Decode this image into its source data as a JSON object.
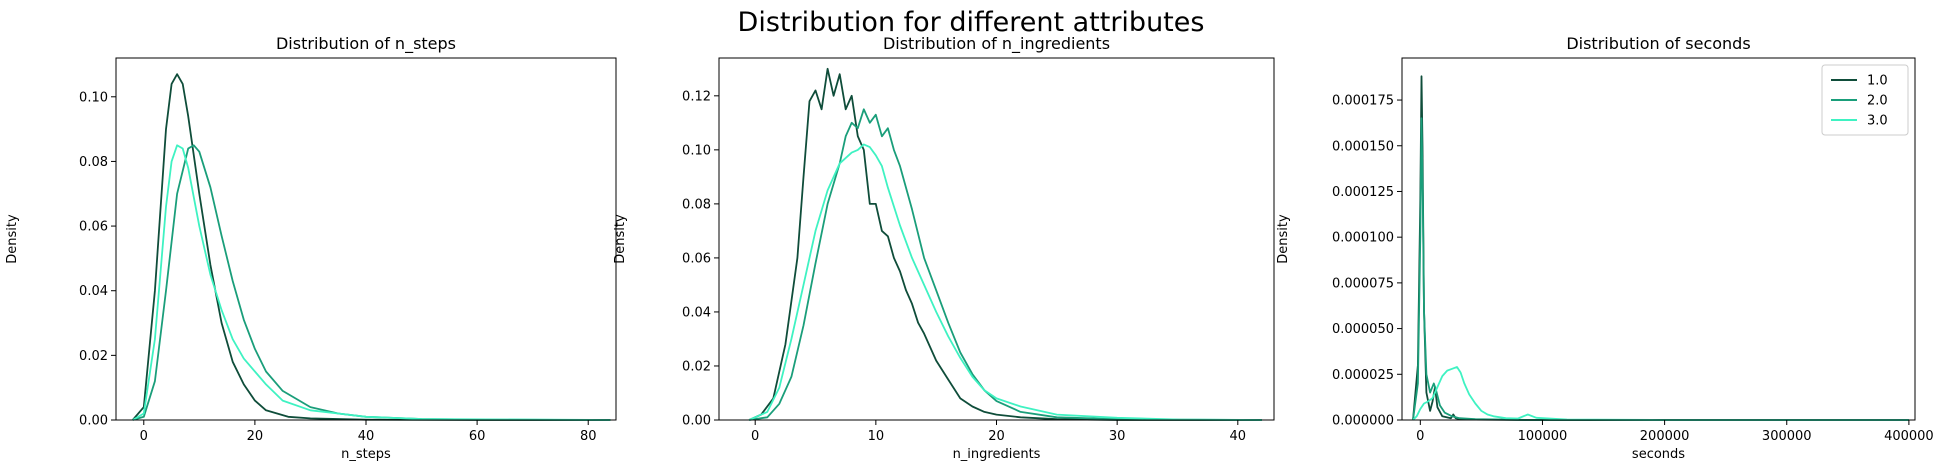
{
  "suptitle": "Distribution for different attributes",
  "colors": {
    "1.0": "#0f4d3a",
    "2.0": "#1a9e7a",
    "3.0": "#3ff2c2"
  },
  "chart_data": [
    {
      "type": "line",
      "title": "Distribution of n_steps",
      "xlabel": "n_steps",
      "ylabel": "Density",
      "xlim": [
        -5,
        85
      ],
      "ylim": [
        0,
        0.112
      ],
      "xticks": [
        0,
        20,
        40,
        60,
        80
      ],
      "xtick_labels": [
        "0",
        "20",
        "40",
        "60",
        "80"
      ],
      "yticks": [
        0,
        0.02,
        0.04,
        0.06,
        0.08,
        0.1
      ],
      "ytick_labels": [
        "0.00",
        "0.02",
        "0.04",
        "0.06",
        "0.08",
        "0.10"
      ],
      "series": [
        {
          "name": "1.0",
          "x": [
            -2,
            0,
            2,
            4,
            5,
            6,
            7,
            8,
            10,
            12,
            14,
            16,
            18,
            20,
            22,
            24,
            26,
            30,
            40,
            60,
            84
          ],
          "y": [
            0,
            0.004,
            0.04,
            0.09,
            0.104,
            0.107,
            0.104,
            0.094,
            0.07,
            0.048,
            0.03,
            0.018,
            0.011,
            0.006,
            0.003,
            0.002,
            0.001,
            0.0005,
            0.0001,
            0,
            0
          ]
        },
        {
          "name": "2.0",
          "x": [
            -2,
            0,
            2,
            4,
            6,
            8,
            9,
            10,
            12,
            14,
            16,
            18,
            20,
            22,
            25,
            30,
            35,
            40,
            50,
            60,
            84
          ],
          "y": [
            0,
            0.001,
            0.012,
            0.04,
            0.07,
            0.084,
            0.085,
            0.083,
            0.072,
            0.057,
            0.043,
            0.031,
            0.022,
            0.015,
            0.009,
            0.004,
            0.002,
            0.001,
            0.0003,
            0.0001,
            0
          ]
        },
        {
          "name": "3.0",
          "x": [
            -2,
            0,
            2,
            4,
            5,
            6,
            7,
            8,
            10,
            12,
            14,
            16,
            18,
            20,
            22,
            25,
            30,
            35,
            40,
            50,
            84
          ],
          "y": [
            0,
            0.002,
            0.025,
            0.066,
            0.08,
            0.085,
            0.084,
            0.078,
            0.06,
            0.045,
            0.034,
            0.025,
            0.019,
            0.015,
            0.011,
            0.006,
            0.003,
            0.002,
            0.001,
            0.0003,
            0
          ]
        }
      ]
    },
    {
      "type": "line",
      "title": "Distribution of n_ingredients",
      "xlabel": "n_ingredients",
      "ylabel": "Density",
      "xlim": [
        -3,
        43
      ],
      "ylim": [
        0,
        0.134
      ],
      "xticks": [
        0,
        10,
        20,
        30,
        40
      ],
      "xtick_labels": [
        "0",
        "10",
        "20",
        "30",
        "40"
      ],
      "yticks": [
        0,
        0.02,
        0.04,
        0.06,
        0.08,
        0.1,
        0.12
      ],
      "ytick_labels": [
        "0.00",
        "0.02",
        "0.04",
        "0.06",
        "0.08",
        "0.10",
        "0.12"
      ],
      "series": [
        {
          "name": "1.0",
          "x": [
            -0.5,
            0.5,
            1.5,
            2.5,
            3.5,
            4,
            4.5,
            5,
            5.5,
            6,
            6.5,
            7,
            7.5,
            8,
            8.5,
            9,
            9.5,
            10,
            10.5,
            11,
            11.5,
            12,
            12.5,
            13,
            13.5,
            14,
            15,
            16,
            17,
            18,
            19,
            20,
            22,
            25,
            30,
            42
          ],
          "y": [
            0,
            0.002,
            0.008,
            0.028,
            0.06,
            0.09,
            0.118,
            0.122,
            0.115,
            0.13,
            0.12,
            0.128,
            0.115,
            0.12,
            0.105,
            0.1,
            0.08,
            0.08,
            0.07,
            0.068,
            0.06,
            0.055,
            0.048,
            0.043,
            0.036,
            0.032,
            0.022,
            0.015,
            0.008,
            0.005,
            0.003,
            0.002,
            0.001,
            0.0003,
            0,
            0
          ]
        },
        {
          "name": "2.0",
          "x": [
            -0.5,
            1,
            2,
            3,
            4,
            5,
            6,
            7,
            7.5,
            8,
            8.5,
            9,
            9.5,
            10,
            10.5,
            11,
            11.5,
            12,
            13,
            14,
            15,
            16,
            17,
            18,
            19,
            20,
            22,
            25,
            30,
            35,
            42
          ],
          "y": [
            0,
            0.001,
            0.006,
            0.016,
            0.035,
            0.058,
            0.08,
            0.095,
            0.105,
            0.11,
            0.108,
            0.115,
            0.11,
            0.113,
            0.105,
            0.108,
            0.1,
            0.094,
            0.078,
            0.06,
            0.048,
            0.036,
            0.025,
            0.017,
            0.011,
            0.007,
            0.003,
            0.001,
            0.0003,
            0.0001,
            0
          ]
        },
        {
          "name": "3.0",
          "x": [
            -0.5,
            1,
            2,
            3,
            4,
            5,
            6,
            7,
            8,
            8.5,
            9,
            9.5,
            10,
            10.5,
            11,
            12,
            13,
            14,
            15,
            16,
            17,
            18,
            19,
            20,
            22,
            25,
            30,
            35,
            42
          ],
          "y": [
            0,
            0.003,
            0.012,
            0.03,
            0.05,
            0.07,
            0.085,
            0.095,
            0.099,
            0.1,
            0.102,
            0.101,
            0.098,
            0.094,
            0.086,
            0.072,
            0.06,
            0.05,
            0.04,
            0.031,
            0.023,
            0.016,
            0.011,
            0.008,
            0.005,
            0.002,
            0.0008,
            0.0002,
            0
          ]
        }
      ]
    },
    {
      "type": "line",
      "title": "Distribution of seconds",
      "xlabel": "seconds",
      "ylabel": "Density",
      "xlim": [
        -15000,
        405000
      ],
      "ylim": [
        0,
        0.000198
      ],
      "xticks": [
        0,
        100000,
        200000,
        300000,
        400000
      ],
      "xtick_labels": [
        "0",
        "100000",
        "200000",
        "300000",
        "400000"
      ],
      "yticks": [
        0,
        2.5e-05,
        5e-05,
        7.5e-05,
        0.0001,
        0.000125,
        0.00015,
        0.000175
      ],
      "ytick_labels": [
        "0.000000",
        "0.000025",
        "0.000050",
        "0.000075",
        "0.000100",
        "0.000125",
        "0.000150",
        "0.000175"
      ],
      "legend": {
        "position": "top-right",
        "entries": [
          "1.0",
          "2.0",
          "3.0"
        ]
      },
      "series": [
        {
          "name": "1.0",
          "x": [
            -6000,
            -2000,
            0,
            1000,
            1800,
            3000,
            5000,
            8000,
            10000,
            12000,
            14000,
            18000,
            25000,
            27000,
            29000,
            33000,
            45000,
            90000,
            400000
          ],
          "y": [
            0,
            3e-05,
            0.00012,
            0.000188,
            0.00015,
            6e-05,
            1.5e-05,
            5e-06,
            1e-05,
            1.8e-05,
            7e-06,
            2e-06,
            1e-06,
            3e-06,
            1e-06,
            5e-07,
            2e-07,
            0,
            0
          ]
        },
        {
          "name": "2.0",
          "x": [
            -6000,
            -2000,
            0,
            1000,
            2000,
            3000,
            5000,
            8000,
            11000,
            13000,
            16000,
            20000,
            26000,
            32000,
            45000,
            90000,
            400000
          ],
          "y": [
            0,
            2e-05,
            0.0001,
            0.000165,
            0.00012,
            6e-05,
            2.5e-05,
            1.5e-05,
            2e-05,
            1.6e-05,
            8e-06,
            4e-06,
            2e-06,
            1e-06,
            5e-07,
            0,
            0
          ]
        },
        {
          "name": "3.0",
          "x": [
            -6000,
            -3000,
            0,
            3000,
            6000,
            10000,
            14000,
            18000,
            22000,
            26000,
            30000,
            33000,
            36000,
            40000,
            45000,
            50000,
            55000,
            60000,
            70000,
            80000,
            88000,
            95000,
            120000,
            200000,
            400000
          ],
          "y": [
            0,
            2e-06,
            6e-06,
            9e-06,
            1e-05,
            1.2e-05,
            1.8e-05,
            2.4e-05,
            2.7e-05,
            2.8e-05,
            2.9e-05,
            2.6e-05,
            2e-05,
            1.4e-05,
            9e-06,
            5e-06,
            3e-06,
            2e-06,
            1e-06,
            8e-07,
            3e-06,
            1.2e-06,
            3e-07,
            0,
            0
          ]
        }
      ]
    }
  ]
}
